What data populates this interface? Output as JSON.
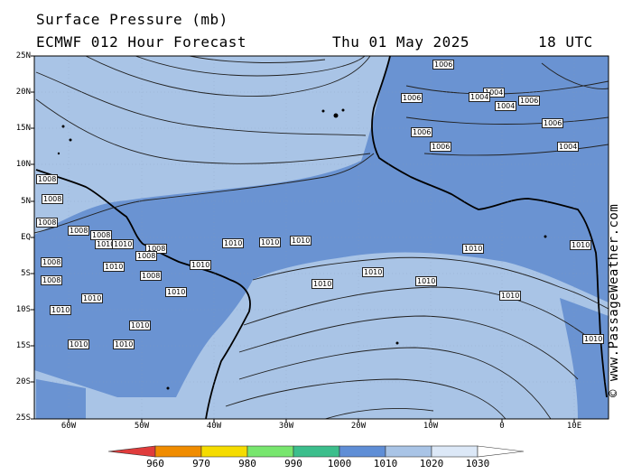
{
  "header": {
    "title": "Surface Pressure (mb)",
    "model": "ECMWF 012 Hour Forecast",
    "date": "Thu 01 May 2025",
    "time": "18 UTC"
  },
  "credit": "© www.PassageWeather.com",
  "axes": {
    "lat_labels": [
      "25N",
      "20N",
      "15N",
      "10N",
      "5N",
      "EQ",
      "5S",
      "10S",
      "15S",
      "20S",
      "25S"
    ],
    "lon_labels": [
      "60W",
      "50W",
      "40W",
      "30W",
      "20W",
      "10W",
      "0",
      "10E"
    ]
  },
  "colorbar": {
    "labels": [
      "960",
      "970",
      "980",
      "990",
      "1000",
      "1010",
      "1020",
      "1030"
    ],
    "colors": [
      "#e03c3c",
      "#f08c00",
      "#f5dc00",
      "#78e66e",
      "#3cbe8c",
      "#5f8ed6",
      "#a9c4e6",
      "#dce8f7",
      "#ffffff"
    ]
  },
  "isobar_labels": [
    "1008",
    "1008",
    "1008",
    "1008",
    "1008",
    "1008",
    "1008",
    "1008",
    "1008",
    "1008",
    "1010",
    "1010",
    "1010",
    "1010",
    "1010",
    "1010",
    "1010",
    "1010",
    "1010",
    "1010",
    "1010",
    "1010",
    "1010",
    "1010",
    "1010",
    "1010",
    "1010",
    "1010",
    "1010",
    "1010",
    "1006",
    "1006",
    "1006",
    "1006",
    "1006",
    "1006",
    "1004",
    "1004",
    "1004",
    "1004"
  ]
}
